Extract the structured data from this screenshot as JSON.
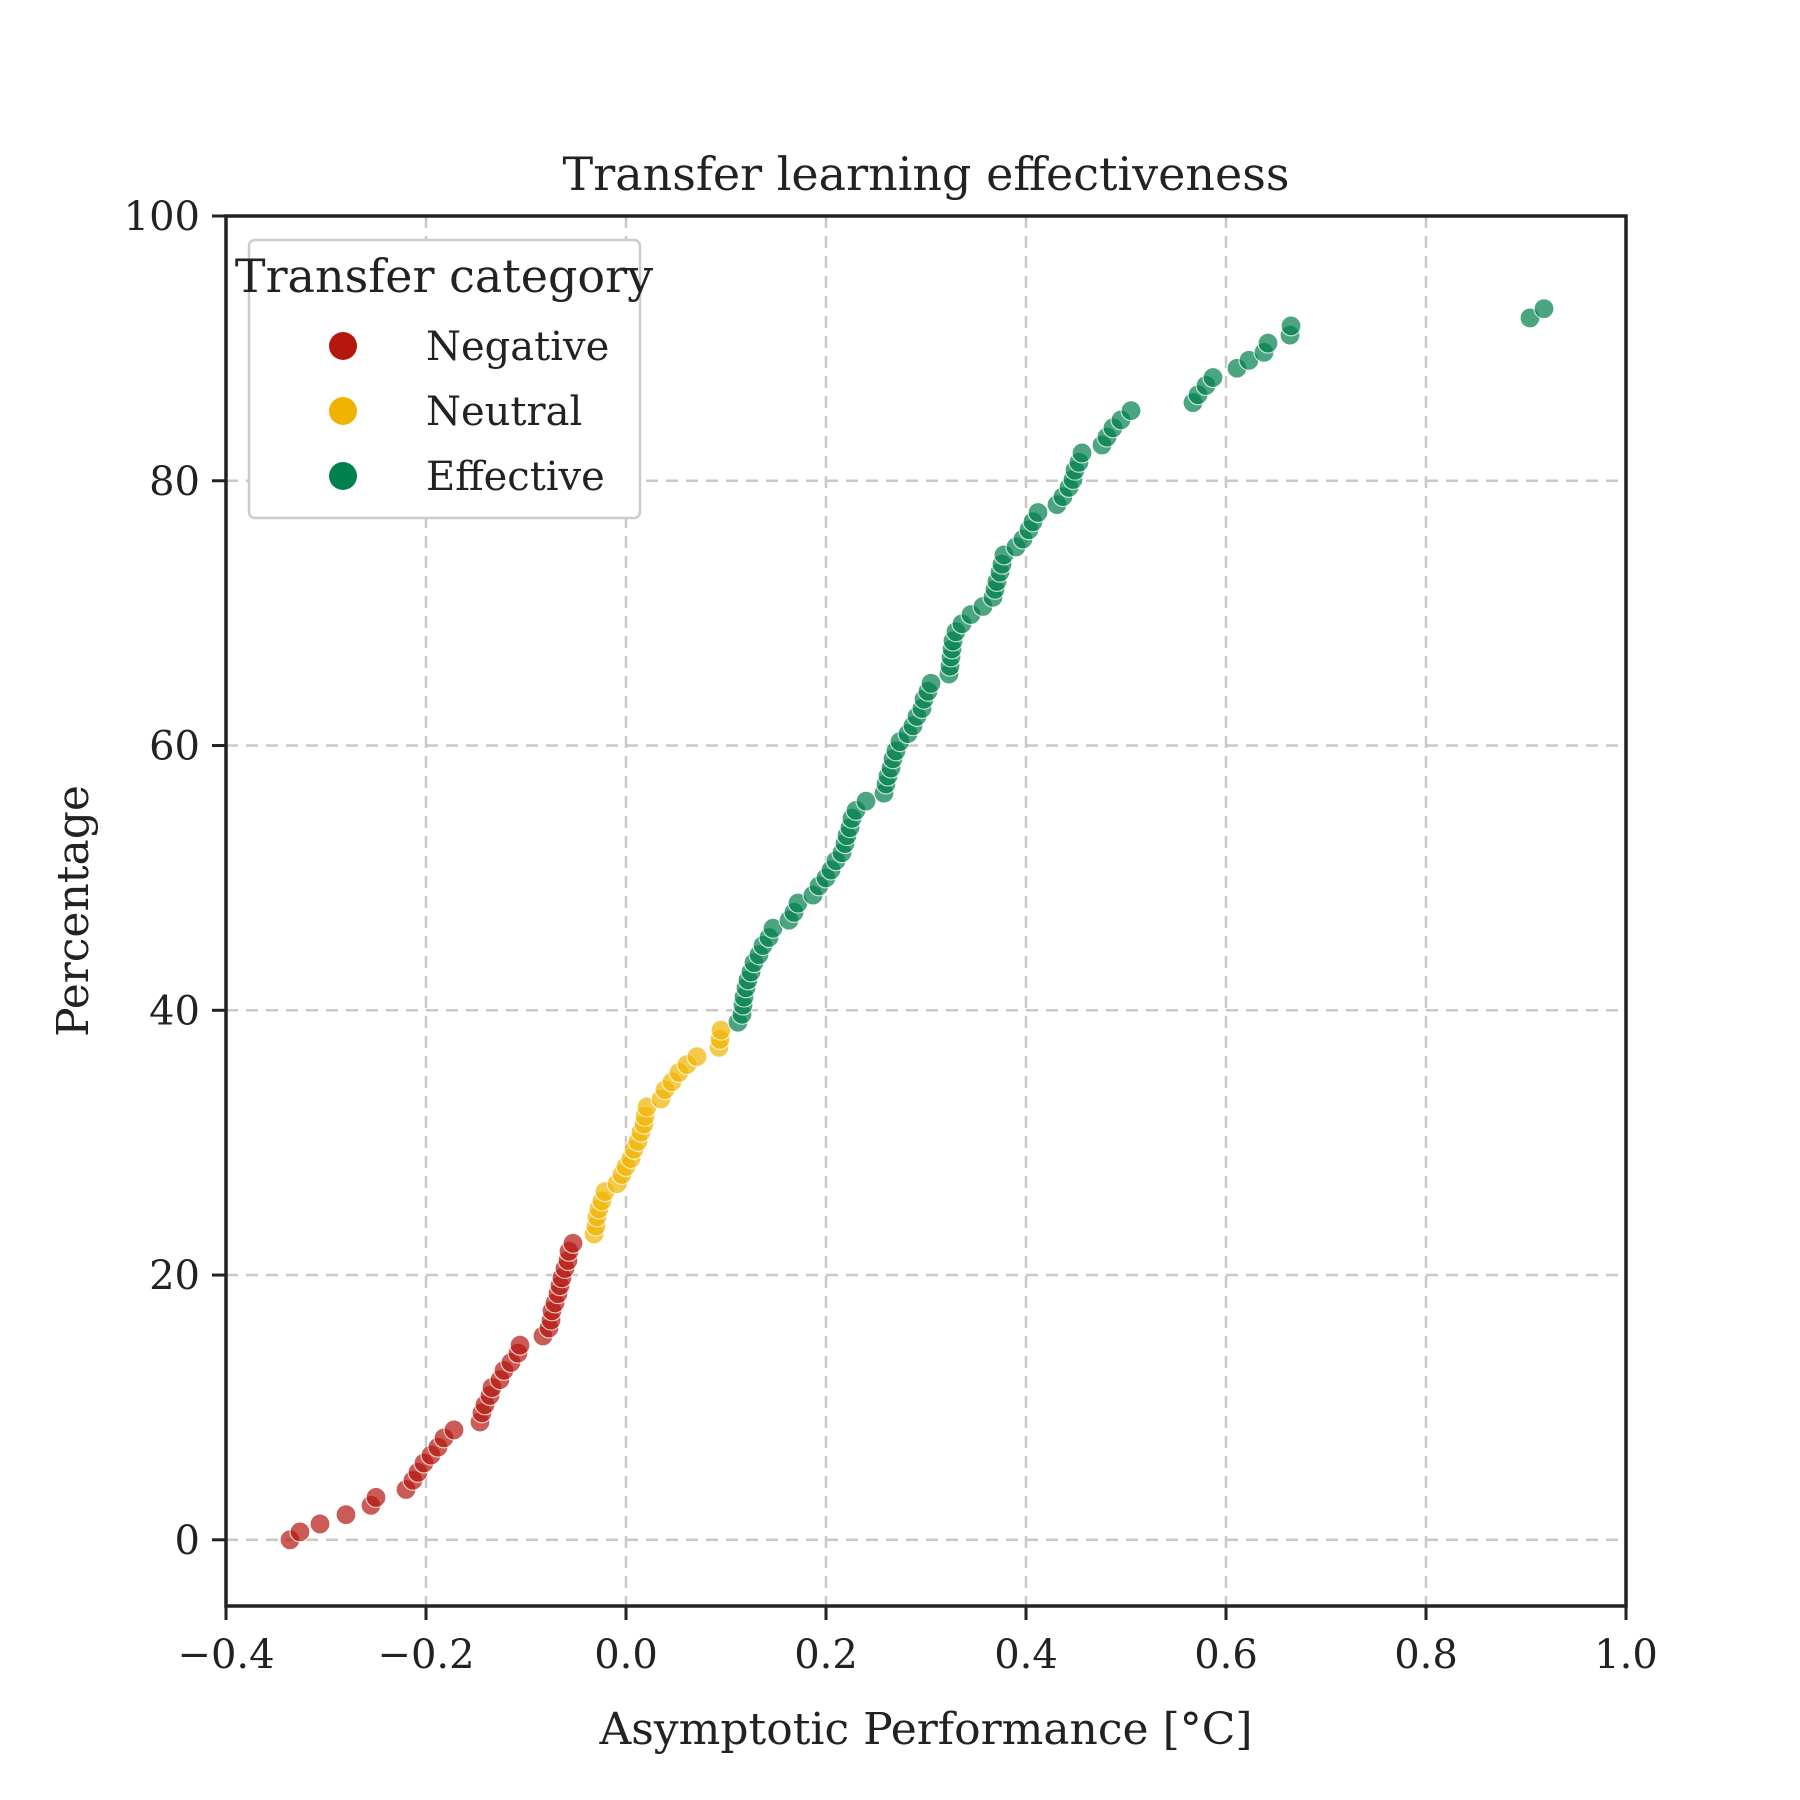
{
  "chart_data": {
    "type": "scatter",
    "title": "Transfer learning effectiveness",
    "xlabel": "Asymptotic Performance [°C]",
    "ylabel": "Percentage",
    "xlim": [
      -0.4,
      1.0
    ],
    "ylim": [
      -5,
      100
    ],
    "xticks": [
      -0.4,
      -0.2,
      0.0,
      0.2,
      0.4,
      0.6,
      0.8,
      1.0
    ],
    "xtick_labels": [
      "−0.4",
      "−0.2",
      "0.0",
      "0.2",
      "0.4",
      "0.6",
      "0.8",
      "1.0"
    ],
    "yticks": [
      0,
      20,
      40,
      60,
      80,
      100
    ],
    "ytick_labels": [
      "0",
      "20",
      "40",
      "60",
      "80",
      "100"
    ],
    "grid": true,
    "legend": {
      "title": "Transfer category",
      "position": "top-left"
    },
    "series": [
      {
        "name": "Negative",
        "color": "#b5170f",
        "points": [
          [
            -0.336,
            0.0
          ],
          [
            -0.326,
            0.6
          ],
          [
            -0.306,
            1.2
          ],
          [
            -0.28,
            1.9
          ],
          [
            -0.255,
            2.6
          ],
          [
            -0.25,
            3.2
          ],
          [
            -0.22,
            3.8
          ],
          [
            -0.213,
            4.5
          ],
          [
            -0.208,
            5.1
          ],
          [
            -0.202,
            5.8
          ],
          [
            -0.195,
            6.4
          ],
          [
            -0.188,
            7.0
          ],
          [
            -0.182,
            7.7
          ],
          [
            -0.172,
            8.3
          ],
          [
            -0.146,
            8.9
          ],
          [
            -0.144,
            9.6
          ],
          [
            -0.141,
            10.2
          ],
          [
            -0.136,
            10.9
          ],
          [
            -0.134,
            11.5
          ],
          [
            -0.126,
            12.1
          ],
          [
            -0.122,
            12.8
          ],
          [
            -0.115,
            13.4
          ],
          [
            -0.108,
            14.1
          ],
          [
            -0.106,
            14.7
          ],
          [
            -0.083,
            15.4
          ],
          [
            -0.077,
            16.0
          ],
          [
            -0.075,
            16.6
          ],
          [
            -0.074,
            17.3
          ],
          [
            -0.071,
            17.9
          ],
          [
            -0.068,
            18.6
          ],
          [
            -0.066,
            19.2
          ],
          [
            -0.064,
            19.8
          ],
          [
            -0.061,
            20.5
          ],
          [
            -0.058,
            21.1
          ],
          [
            -0.057,
            21.8
          ],
          [
            -0.053,
            22.4
          ]
        ]
      },
      {
        "name": "Neutral",
        "color": "#f0b400",
        "points": [
          [
            -0.032,
            23.1
          ],
          [
            -0.03,
            23.7
          ],
          [
            -0.029,
            24.4
          ],
          [
            -0.027,
            25.0
          ],
          [
            -0.024,
            25.6
          ],
          [
            -0.021,
            26.3
          ],
          [
            -0.009,
            26.9
          ],
          [
            -0.004,
            27.6
          ],
          [
            0.0,
            28.2
          ],
          [
            0.005,
            28.8
          ],
          [
            0.008,
            29.5
          ],
          [
            0.012,
            30.1
          ],
          [
            0.015,
            30.8
          ],
          [
            0.018,
            31.4
          ],
          [
            0.019,
            32.0
          ],
          [
            0.021,
            32.7
          ],
          [
            0.035,
            33.3
          ],
          [
            0.039,
            34.0
          ],
          [
            0.046,
            34.6
          ],
          [
            0.053,
            35.3
          ],
          [
            0.061,
            35.9
          ],
          [
            0.071,
            36.5
          ],
          [
            0.093,
            37.2
          ],
          [
            0.094,
            37.8
          ],
          [
            0.095,
            38.5
          ]
        ]
      },
      {
        "name": "Effective",
        "color": "#00804c",
        "points": [
          [
            0.112,
            39.1
          ],
          [
            0.116,
            39.7
          ],
          [
            0.117,
            40.4
          ],
          [
            0.118,
            41.0
          ],
          [
            0.12,
            41.7
          ],
          [
            0.122,
            42.3
          ],
          [
            0.125,
            42.9
          ],
          [
            0.128,
            43.6
          ],
          [
            0.133,
            44.2
          ],
          [
            0.137,
            44.9
          ],
          [
            0.143,
            45.5
          ],
          [
            0.147,
            46.2
          ],
          [
            0.163,
            46.8
          ],
          [
            0.168,
            47.4
          ],
          [
            0.172,
            48.1
          ],
          [
            0.187,
            48.7
          ],
          [
            0.193,
            49.4
          ],
          [
            0.2,
            50.0
          ],
          [
            0.205,
            50.6
          ],
          [
            0.21,
            51.3
          ],
          [
            0.216,
            51.9
          ],
          [
            0.219,
            52.6
          ],
          [
            0.221,
            53.2
          ],
          [
            0.224,
            53.8
          ],
          [
            0.226,
            54.5
          ],
          [
            0.23,
            55.1
          ],
          [
            0.24,
            55.8
          ],
          [
            0.258,
            56.4
          ],
          [
            0.26,
            57.1
          ],
          [
            0.262,
            57.7
          ],
          [
            0.265,
            58.3
          ],
          [
            0.267,
            59.0
          ],
          [
            0.27,
            59.6
          ],
          [
            0.274,
            60.3
          ],
          [
            0.282,
            60.9
          ],
          [
            0.287,
            61.5
          ],
          [
            0.291,
            62.2
          ],
          [
            0.296,
            62.8
          ],
          [
            0.298,
            63.5
          ],
          [
            0.302,
            64.1
          ],
          [
            0.305,
            64.7
          ],
          [
            0.323,
            65.4
          ],
          [
            0.324,
            66.0
          ],
          [
            0.325,
            66.7
          ],
          [
            0.326,
            67.3
          ],
          [
            0.327,
            67.9
          ],
          [
            0.33,
            68.6
          ],
          [
            0.336,
            69.2
          ],
          [
            0.345,
            69.9
          ],
          [
            0.357,
            70.5
          ],
          [
            0.367,
            71.2
          ],
          [
            0.369,
            71.8
          ],
          [
            0.371,
            72.4
          ],
          [
            0.374,
            73.1
          ],
          [
            0.376,
            73.7
          ],
          [
            0.378,
            74.4
          ],
          [
            0.39,
            75.0
          ],
          [
            0.397,
            75.6
          ],
          [
            0.403,
            76.3
          ],
          [
            0.407,
            76.9
          ],
          [
            0.412,
            77.6
          ],
          [
            0.431,
            78.2
          ],
          [
            0.437,
            78.8
          ],
          [
            0.443,
            79.5
          ],
          [
            0.447,
            80.1
          ],
          [
            0.449,
            80.8
          ],
          [
            0.453,
            81.4
          ],
          [
            0.456,
            82.1
          ],
          [
            0.476,
            82.7
          ],
          [
            0.481,
            83.3
          ],
          [
            0.487,
            84.0
          ],
          [
            0.495,
            84.6
          ],
          [
            0.505,
            85.3
          ],
          [
            0.567,
            85.9
          ],
          [
            0.572,
            86.5
          ],
          [
            0.58,
            87.2
          ],
          [
            0.587,
            87.8
          ],
          [
            0.611,
            88.5
          ],
          [
            0.623,
            89.1
          ],
          [
            0.638,
            89.7
          ],
          [
            0.642,
            90.4
          ],
          [
            0.664,
            91.0
          ],
          [
            0.665,
            91.7
          ],
          [
            0.904,
            92.3
          ],
          [
            0.918,
            93.0
          ]
        ]
      }
    ]
  }
}
